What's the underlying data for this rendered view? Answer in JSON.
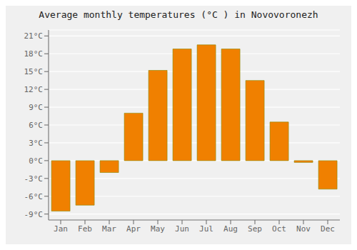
{
  "chart_data": {
    "type": "bar",
    "title": "Average monthly temperatures (°C ) in Novovoronezh",
    "categories": [
      "Jan",
      "Feb",
      "Mar",
      "Apr",
      "May",
      "Jun",
      "Jul",
      "Aug",
      "Sep",
      "Oct",
      "Nov",
      "Dec"
    ],
    "values": [
      -8.5,
      -7.5,
      -2.0,
      8.0,
      15.2,
      18.8,
      19.5,
      18.8,
      13.5,
      6.5,
      -0.3,
      -4.8
    ],
    "color": "#F08000",
    "ylim": [
      -10,
      22
    ],
    "yticks": [
      {
        "value": -9,
        "label": "-9°C"
      },
      {
        "value": -6,
        "label": "-6°C"
      },
      {
        "value": -3,
        "label": "-3°C"
      },
      {
        "value": 0,
        "label": "0°C"
      },
      {
        "value": 3,
        "label": "3°C"
      },
      {
        "value": 6,
        "label": "6°C"
      },
      {
        "value": 9,
        "label": "9°C"
      },
      {
        "value": 12,
        "label": "12°C"
      },
      {
        "value": 15,
        "label": "15°C"
      },
      {
        "value": 18,
        "label": "18°C"
      },
      {
        "value": 21,
        "label": "21°C"
      }
    ],
    "grid": true
  }
}
